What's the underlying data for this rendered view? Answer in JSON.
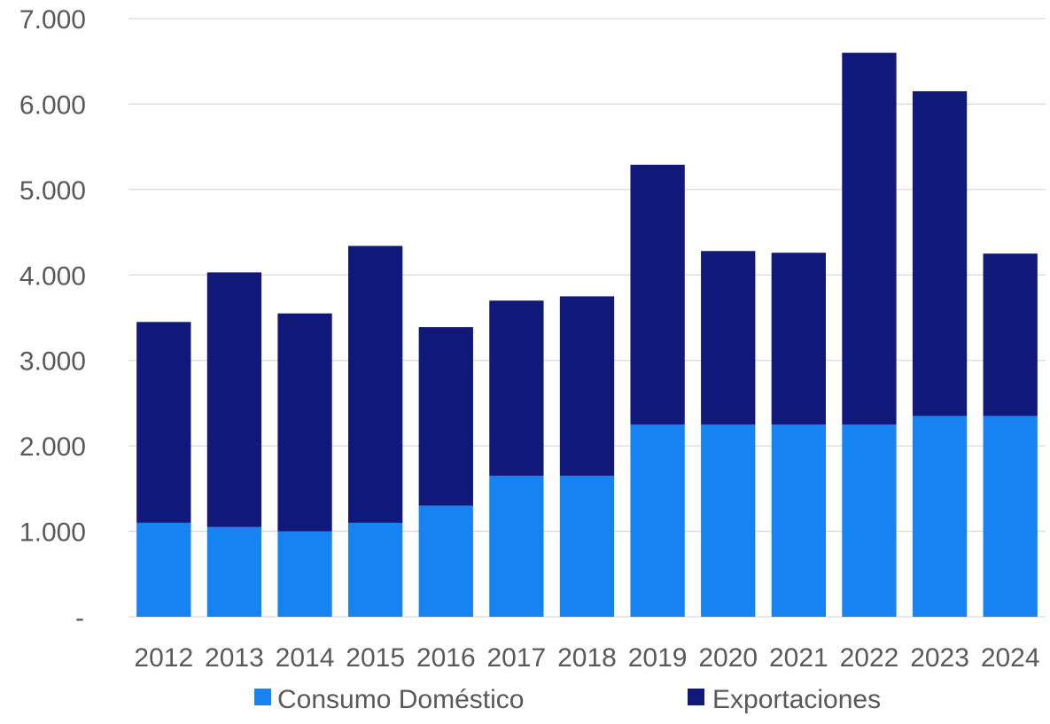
{
  "chart_data": {
    "type": "bar",
    "stacked": true,
    "title": "",
    "xlabel": "",
    "ylabel": "",
    "categories": [
      "2012",
      "2013",
      "2014",
      "2015",
      "2016",
      "2017",
      "2018",
      "2019",
      "2020",
      "2021",
      "2022",
      "2023",
      "2024"
    ],
    "series": [
      {
        "name": "Consumo Doméstico",
        "color": "#1783F2",
        "values": [
          1100,
          1050,
          1000,
          1100,
          1300,
          1650,
          1650,
          2250,
          2250,
          2250,
          2250,
          2350,
          2350
        ]
      },
      {
        "name": "Exportaciones",
        "color": "#10187A",
        "values": [
          2350,
          2980,
          2550,
          3240,
          2090,
          2050,
          2100,
          3040,
          2030,
          2010,
          4350,
          3800,
          1900
        ]
      }
    ],
    "ylim": [
      0,
      7000
    ],
    "yticks": [
      0,
      1000,
      2000,
      3000,
      4000,
      5000,
      6000,
      7000
    ],
    "ytick_labels": [
      "-",
      "1.000",
      "2.000",
      "3.000",
      "4.000",
      "5.000",
      "6.000",
      "7.000"
    ],
    "grid": true,
    "legend_position": "bottom"
  }
}
